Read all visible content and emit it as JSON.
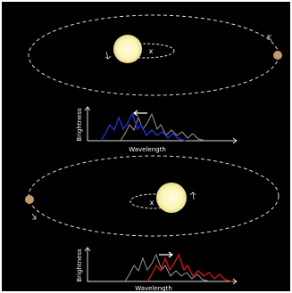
{
  "panels": [
    {
      "star_label": "x",
      "y_axis_label": "Brightness",
      "x_axis_label": "Wavelength"
    },
    {
      "star_label": "x",
      "y_axis_label": "Brightness",
      "x_axis_label": "Wavelength"
    }
  ]
}
